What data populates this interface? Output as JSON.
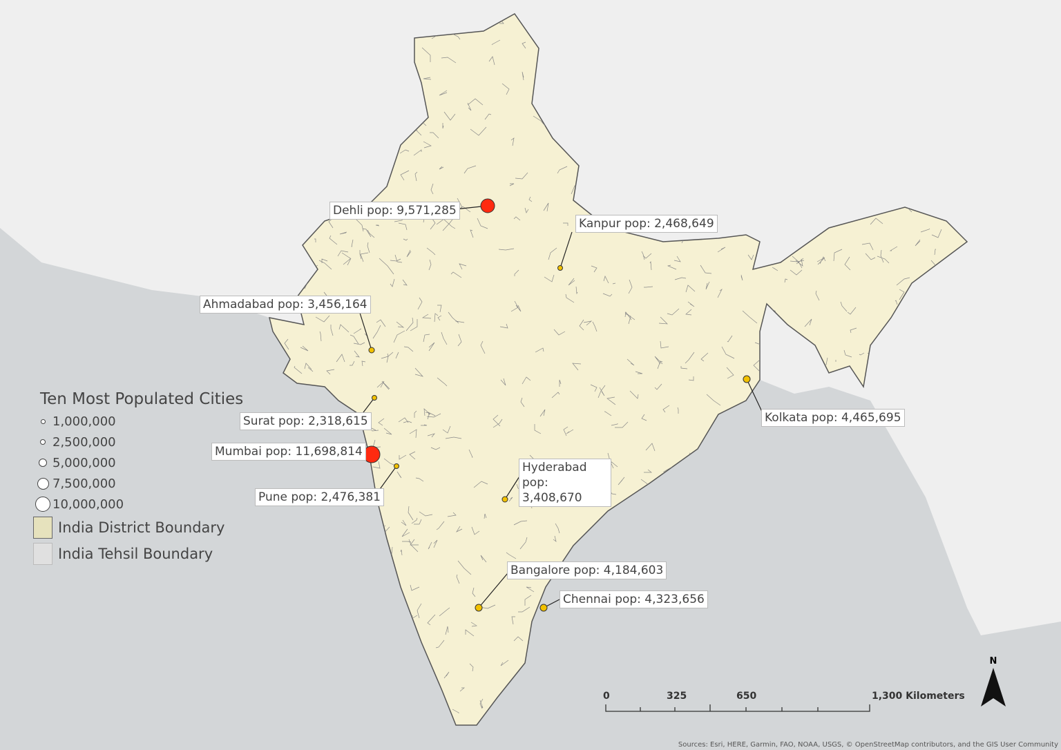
{
  "legend": {
    "title": "Ten Most Populated Cities",
    "sizes": [
      "1,000,000",
      "2,500,000",
      "5,000,000",
      "7,500,000",
      "10,000,000"
    ],
    "layers": [
      {
        "label": "India District Boundary",
        "color": "#e6e2bd"
      },
      {
        "label": "India Tehsil Boundary",
        "color": "#e0e0e0"
      }
    ]
  },
  "cities": [
    {
      "label": "Dehli pop: 9,571,285",
      "population": 9571285,
      "color": "#ff2a10"
    },
    {
      "label": "Kanpur pop: 2,468,649",
      "population": 2468649,
      "color": "#f2c100"
    },
    {
      "label": "Ahmadabad pop: 3,456,164",
      "population": 3456164,
      "color": "#f2c100"
    },
    {
      "label": "Surat pop: 2,318,615",
      "population": 2318615,
      "color": "#f2c100"
    },
    {
      "label": "Mumbai pop: 11,698,814",
      "population": 11698814,
      "color": "#ff2a10"
    },
    {
      "label": "Pune pop: 2,476,381",
      "population": 2476381,
      "color": "#f2c100"
    },
    {
      "label": "Hyderabad pop: 3,408,670",
      "population": 3408670,
      "color": "#f2c100"
    },
    {
      "label": "Kolkata pop: 4,465,695",
      "population": 4465695,
      "color": "#f2c100"
    },
    {
      "label": "Bangalore pop: 4,184,603",
      "population": 4184603,
      "color": "#f2c100"
    },
    {
      "label": "Chennai pop: 4,323,656",
      "population": 4323656,
      "color": "#f2c100"
    }
  ],
  "scale_bar": {
    "ticks": [
      "0",
      "325",
      "650",
      "1,300 Kilometers"
    ]
  },
  "north_arrow": "N",
  "attribution": "Sources: Esri, HERE, Garmin, FAO, NOAA, USGS, © OpenStreetMap contributors, and the GIS User Community",
  "colors": {
    "land": "#f6f1d3",
    "sea": "#d3d6d8",
    "other_land": "#efefef",
    "district_border": "#666"
  }
}
